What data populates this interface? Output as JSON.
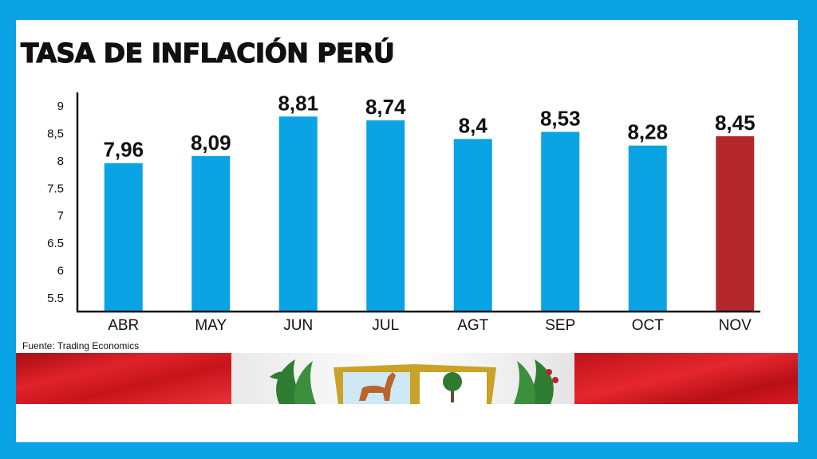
{
  "chart_data": {
    "type": "bar",
    "title": "TASA DE INFLACIÓN PERÚ",
    "xlabel": "",
    "ylabel": "",
    "categories": [
      "ABR",
      "MAY",
      "JUN",
      "JUL",
      "AGT",
      "SEP",
      "OCT",
      "NOV"
    ],
    "values": [
      7.96,
      8.09,
      8.81,
      8.74,
      8.4,
      8.53,
      8.28,
      8.45
    ],
    "value_labels": [
      "7,96",
      "8,09",
      "8,81",
      "8,74",
      "8,4",
      "8,53",
      "8,28",
      "8,45"
    ],
    "ylim": [
      5.25,
      9.25
    ],
    "yticks": [
      5.5,
      6,
      6.5,
      7,
      7.5,
      8,
      8.5,
      9
    ],
    "ytick_labels": [
      "5.5",
      "6",
      "6.5",
      "7",
      "7.5",
      "8",
      "8,5",
      "9"
    ],
    "grid": false,
    "bar_color": "#0aa3e3",
    "highlight_color": "#b3282c",
    "highlight_category": "NOV"
  },
  "source": "Fuente: Trading Economics",
  "colors": {
    "background": "#0aa3e3",
    "panel": "#ffffff",
    "flag_red": "#d3141c"
  },
  "decoration": {
    "flag_icon": "peru-flag-coat-of-arms-icon"
  }
}
